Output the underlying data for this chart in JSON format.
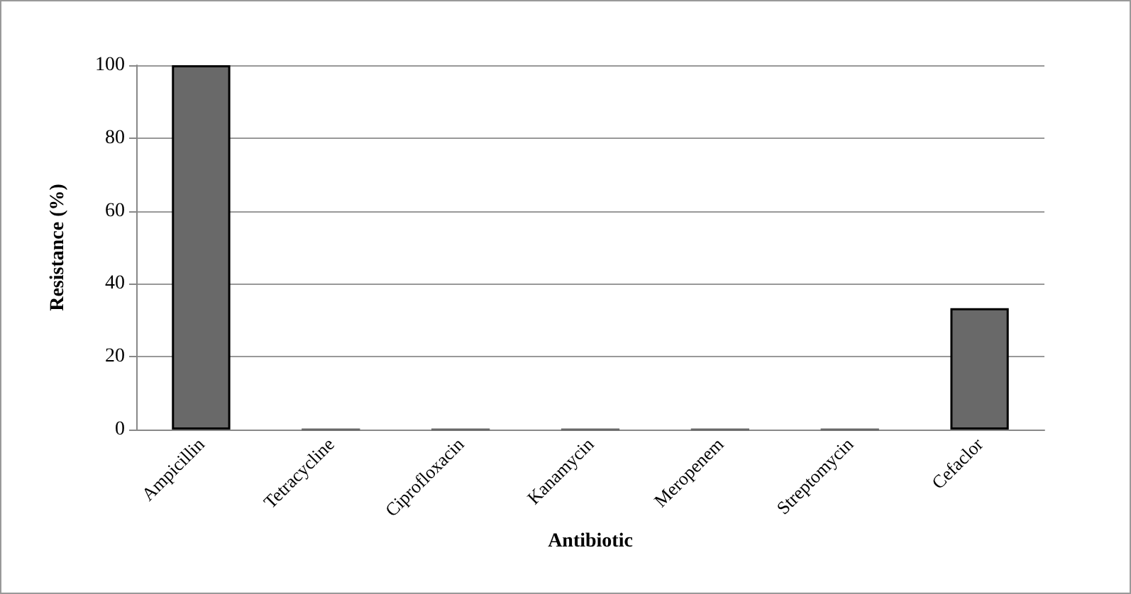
{
  "chart_data": {
    "type": "bar",
    "xlabel": "Antibiotic",
    "ylabel": "Resistance (%)",
    "categories": [
      "Ampicillin",
      "Tetracycline",
      "Ciprofloxacin",
      "Kanamycin",
      "Meropenem",
      "Streptomycin",
      "Cefaclor"
    ],
    "values": [
      100,
      0,
      0,
      0,
      0,
      0,
      33.3
    ],
    "color": "#696969",
    "ylim": [
      0,
      100
    ],
    "yticks": [
      0,
      20,
      40,
      60,
      80,
      100
    ],
    "grid": "y"
  }
}
